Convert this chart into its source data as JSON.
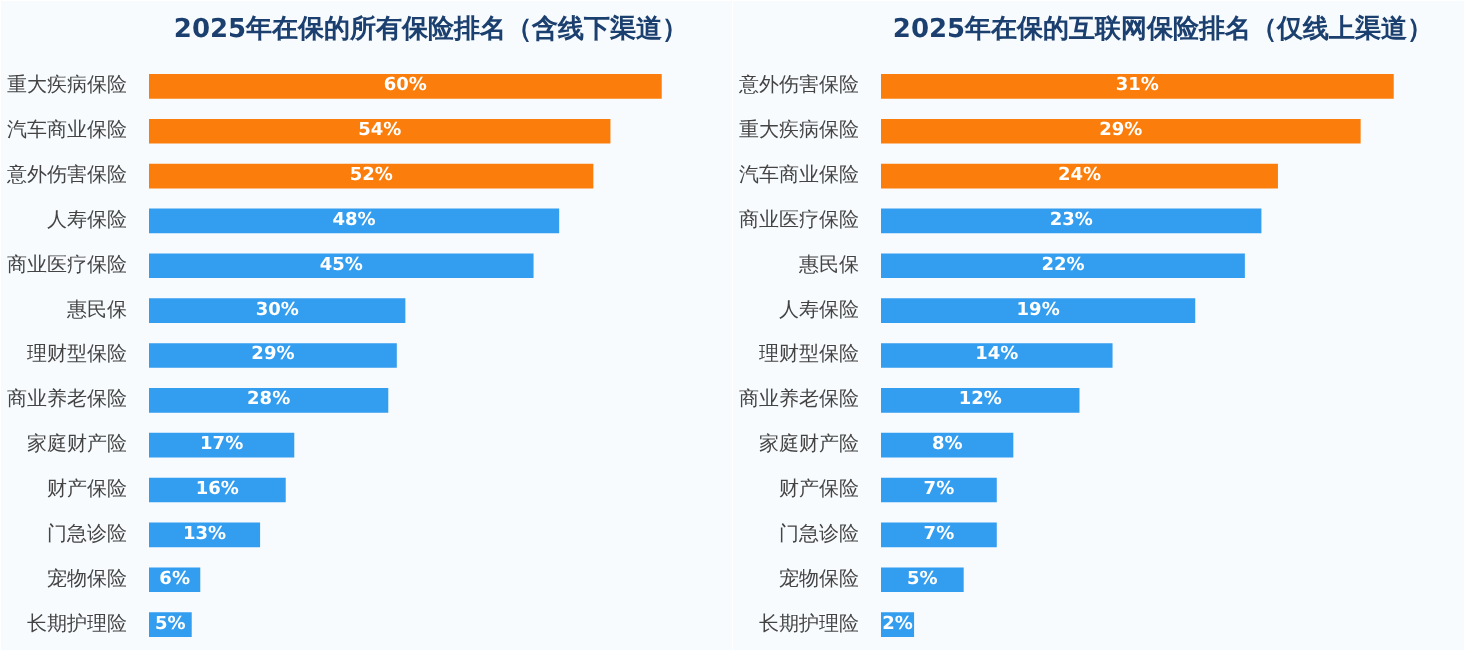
{
  "chart_data": [
    {
      "type": "bar",
      "orientation": "horizontal",
      "title": "2025年在保的所有保险排名（含线下渠道）",
      "categories": [
        "重大疾病保险",
        "汽车商业保险",
        "意外伤害保险",
        "人寿保险",
        "商业医疗保险",
        "惠民保",
        "理财型保险",
        "商业养老保险",
        "家庭财产险",
        "财产保险",
        "门急诊险",
        "宠物保险",
        "长期护理险"
      ],
      "values": [
        60,
        54,
        52,
        48,
        45,
        30,
        29,
        28,
        17,
        16,
        13,
        6,
        5
      ],
      "value_labels": [
        "60%",
        "54%",
        "52%",
        "48%",
        "45%",
        "30%",
        "29%",
        "28%",
        "17%",
        "16%",
        "13%",
        "6%",
        "5%"
      ],
      "colors": [
        "#fb7e0c",
        "#fb7e0c",
        "#fb7e0c",
        "#339df0",
        "#339df0",
        "#339df0",
        "#339df0",
        "#339df0",
        "#339df0",
        "#339df0",
        "#339df0",
        "#339df0",
        "#339df0"
      ]
    },
    {
      "type": "bar",
      "orientation": "horizontal",
      "title": "2025年在保的互联网保险排名（仅线上渠道）",
      "categories": [
        "意外伤害保险",
        "重大疾病保险",
        "汽车商业保险",
        "商业医疗保险",
        "惠民保",
        "人寿保险",
        "理财型保险",
        "商业养老保险",
        "家庭财产险",
        "财产保险",
        "门急诊险",
        "宠物保险",
        "长期护理险"
      ],
      "values": [
        31,
        29,
        24,
        23,
        22,
        19,
        14,
        12,
        8,
        7,
        7,
        5,
        2
      ],
      "value_labels": [
        "31%",
        "29%",
        "24%",
        "23%",
        "22%",
        "19%",
        "14%",
        "12%",
        "8%",
        "7%",
        "7%",
        "5%",
        "2%"
      ],
      "colors": [
        "#fb7e0c",
        "#fb7e0c",
        "#fb7e0c",
        "#339df0",
        "#339df0",
        "#339df0",
        "#339df0",
        "#339df0",
        "#339df0",
        "#339df0",
        "#339df0",
        "#339df0",
        "#339df0"
      ]
    }
  ]
}
